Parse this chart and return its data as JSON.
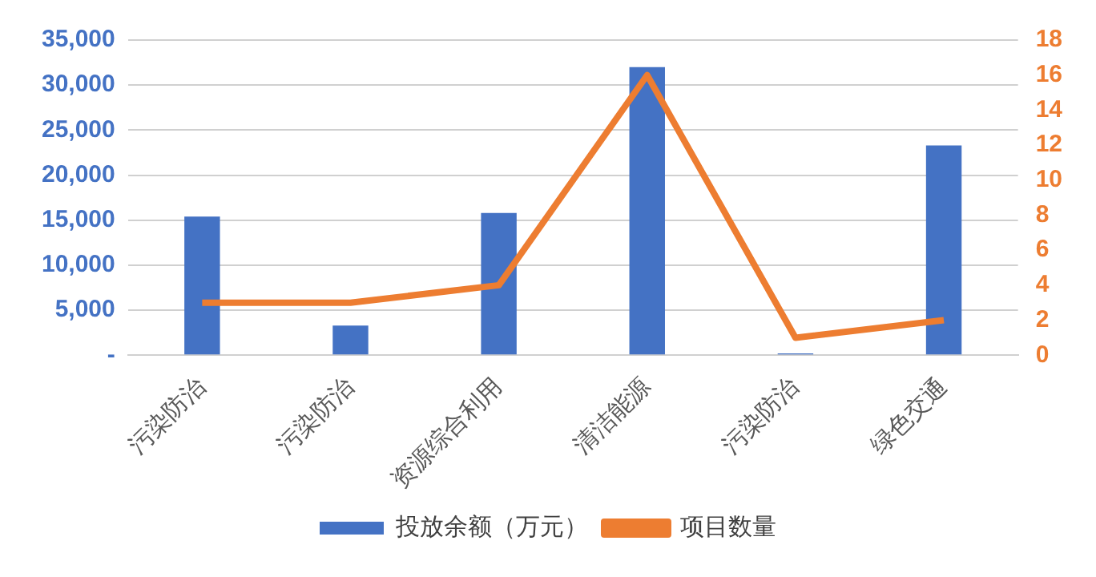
{
  "chart_data": {
    "type": "bar",
    "categories": [
      "污染防治",
      "污染防治",
      "资源综合利用",
      "清洁能源",
      "污染防治",
      "绿色交通"
    ],
    "series": [
      {
        "name": "投放余额（万元）",
        "color": "#4472c4",
        "values": [
          15400,
          3300,
          15800,
          32000,
          200,
          23300
        ]
      },
      {
        "name": "项目数量",
        "type": "line",
        "axis": "y2",
        "color": "#ed7d31",
        "values": [
          3,
          3,
          4,
          16,
          1,
          2
        ]
      }
    ],
    "ylim": [
      0,
      35000
    ],
    "yticks": [
      {
        "value": 0,
        "label": "-"
      },
      {
        "value": 5000,
        "label": "5,000"
      },
      {
        "value": 10000,
        "label": "10,000"
      },
      {
        "value": 15000,
        "label": "15,000"
      },
      {
        "value": 20000,
        "label": "20,000"
      },
      {
        "value": 25000,
        "label": "25,000"
      },
      {
        "value": 30000,
        "label": "30,000"
      },
      {
        "value": 35000,
        "label": "35,000"
      }
    ],
    "y2lim": [
      0,
      18
    ],
    "y2ticks": [
      0,
      2,
      4,
      6,
      8,
      10,
      12,
      14,
      16,
      18
    ],
    "grid": "y",
    "legend": "bottom",
    "marker": "none"
  }
}
